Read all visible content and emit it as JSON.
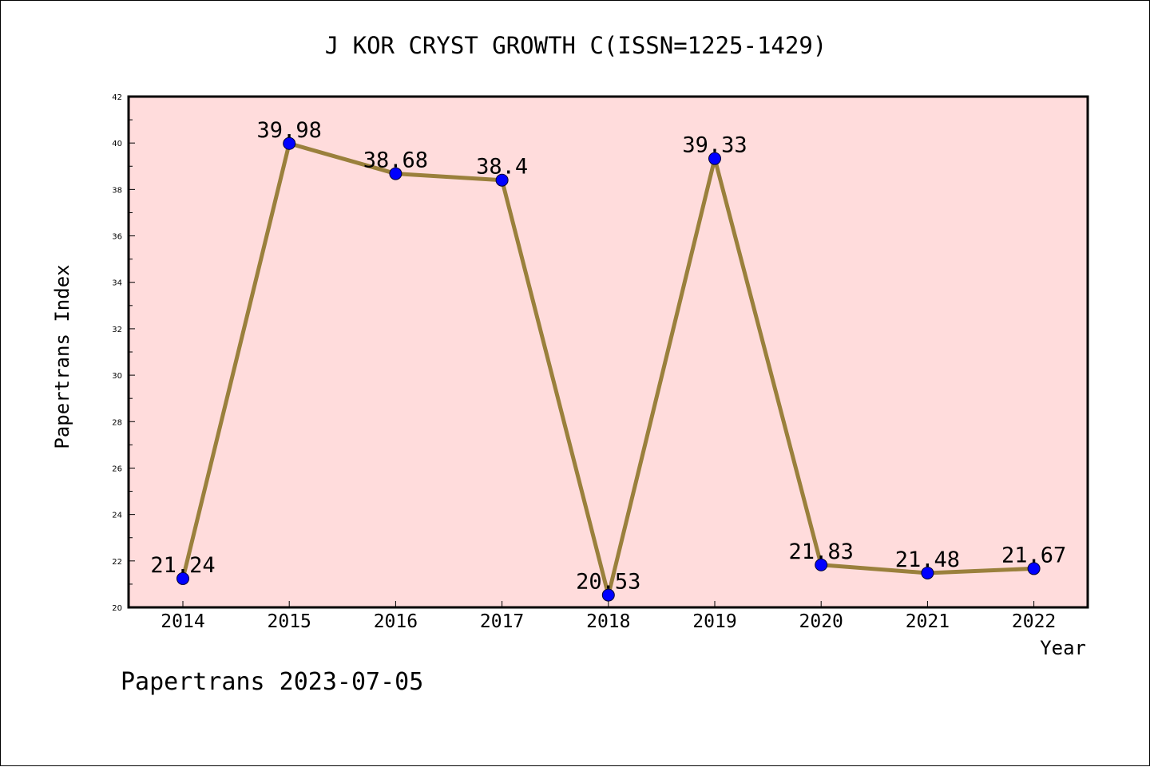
{
  "footer": "Papertrans 2023-07-05",
  "chart_data": {
    "type": "line",
    "title": "J KOR CRYST GROWTH C(ISSN=1225-1429)",
    "xlabel": "Year",
    "ylabel": "Papertrans Index",
    "categories": [
      "2014",
      "2015",
      "2016",
      "2017",
      "2018",
      "2019",
      "2020",
      "2021",
      "2022"
    ],
    "series": [
      {
        "values": [
          21.24,
          39.98,
          38.68,
          38.4,
          20.53,
          39.33,
          21.83,
          21.48,
          21.67
        ],
        "labels": [
          "21.24",
          "39.98",
          "38.68",
          "38.4",
          "20.53",
          "39.33",
          "21.83",
          "21.48",
          "21.67"
        ]
      }
    ],
    "ylim": [
      20,
      42
    ],
    "yticks": [
      "20",
      "22",
      "24",
      "26",
      "28",
      "30",
      "32",
      "34",
      "36",
      "38",
      "40",
      "42"
    ],
    "grid": false,
    "legend": "none",
    "colors": {
      "plot_background": "#ffdcdc",
      "line": "#9a803c",
      "marker": "#0000ff",
      "axis": "#000000"
    }
  }
}
